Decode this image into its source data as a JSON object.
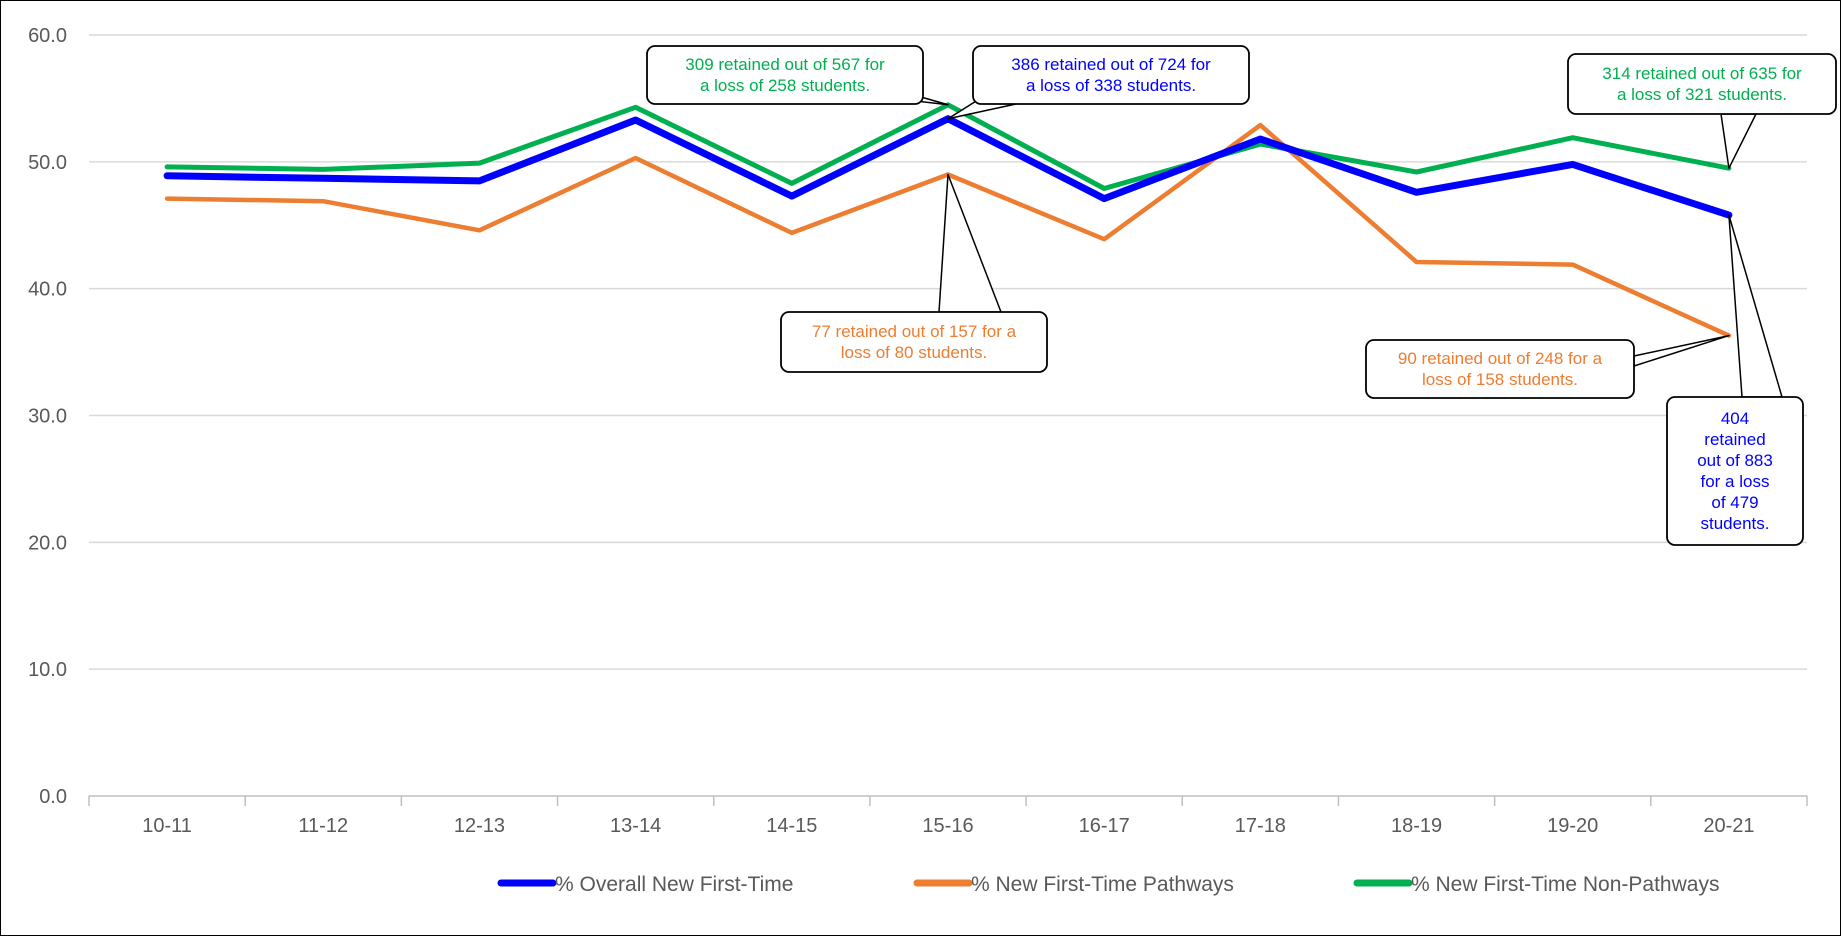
{
  "chart_data": {
    "type": "line",
    "title": "",
    "xlabel": "",
    "ylabel": "",
    "ylim": [
      0,
      60
    ],
    "y_ticks": [
      "0.0",
      "10.0",
      "20.0",
      "30.0",
      "40.0",
      "50.0",
      "60.0"
    ],
    "grid": true,
    "legend_position": "bottom",
    "categories": [
      "10-11",
      "11-12",
      "12-13",
      "13-14",
      "14-15",
      "15-16",
      "16-17",
      "17-18",
      "18-19",
      "19-20",
      "20-21"
    ],
    "series": [
      {
        "name": "% Overall New First-Time",
        "color": "#0000FF",
        "values": [
          48.9,
          48.7,
          48.5,
          53.3,
          47.3,
          53.4,
          47.1,
          51.8,
          47.6,
          49.8,
          45.8
        ]
      },
      {
        "name": "% New First-Time Pathways",
        "color": "#ED7D31",
        "values": [
          47.1,
          46.9,
          44.6,
          50.3,
          44.4,
          49.0,
          43.9,
          52.9,
          42.1,
          41.9,
          36.3
        ]
      },
      {
        "name": "% New First-Time Non-Pathways",
        "color": "#00B050",
        "values": [
          49.6,
          49.4,
          49.9,
          54.3,
          48.3,
          54.5,
          47.9,
          51.4,
          49.2,
          51.9,
          49.5
        ]
      }
    ],
    "annotations": [
      {
        "lines": [
          "309 retained out of 567 for",
          "a loss of 258 students."
        ],
        "color": "#00B050",
        "series": 2,
        "category": "15-16"
      },
      {
        "lines": [
          "386 retained out of 724 for",
          "a loss of 338 students."
        ],
        "color": "#0000FF",
        "series": 0,
        "category": "15-16"
      },
      {
        "lines": [
          "314 retained out of 635 for",
          "a loss of 321 students."
        ],
        "color": "#00B050",
        "series": 2,
        "category": "20-21"
      },
      {
        "lines": [
          "77 retained out of 157 for a",
          "loss of 80 students."
        ],
        "color": "#ED7D31",
        "series": 1,
        "category": "15-16"
      },
      {
        "lines": [
          "90 retained out of 248 for a",
          "loss of 158 students."
        ],
        "color": "#ED7D31",
        "series": 1,
        "category": "20-21"
      },
      {
        "lines": [
          "404",
          "retained",
          "out of 883",
          "for a loss",
          "of 479",
          "students."
        ],
        "color": "#0000FF",
        "series": 0,
        "category": "20-21"
      }
    ]
  }
}
